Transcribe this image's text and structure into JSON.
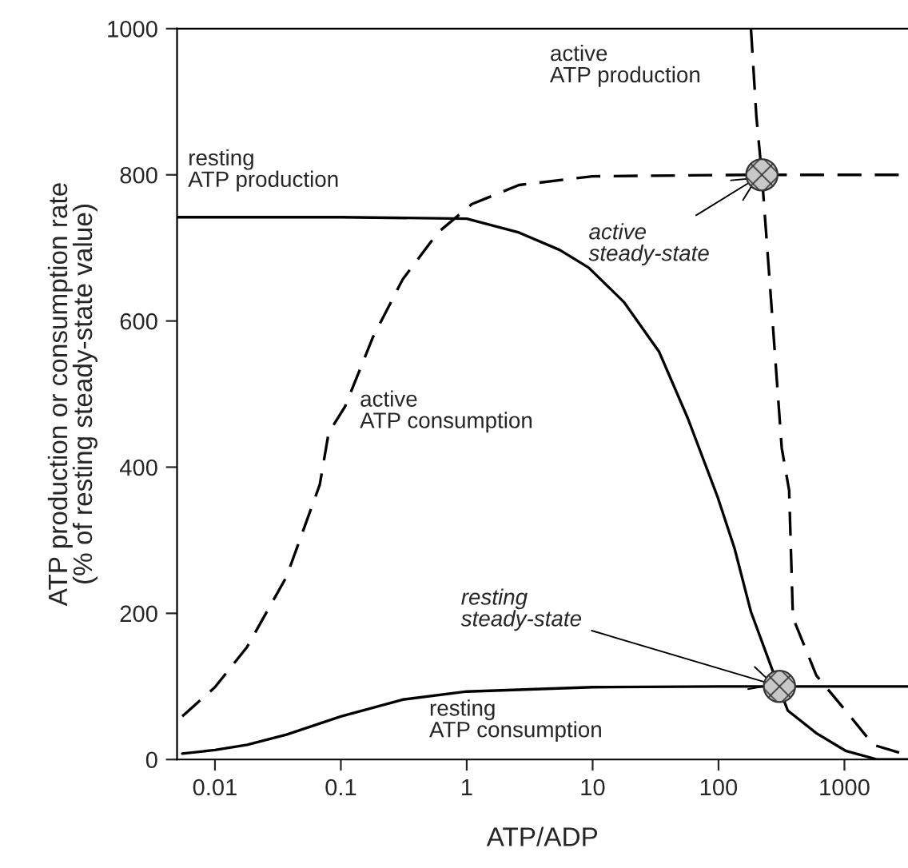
{
  "chart_data": {
    "type": "line",
    "xlabel": "ATP/ADP",
    "ylabel": "ATP production or consumption rate\n(% of resting steady-state value)",
    "log": "x",
    "xlim": [
      0.005,
      3200
    ],
    "ylim": [
      0,
      1000
    ],
    "xticks": [
      0.01,
      0.1,
      1,
      10,
      100,
      1000
    ],
    "yticks": [
      0,
      200,
      400,
      600,
      800,
      1000
    ],
    "grid": false,
    "legend": false,
    "series": [
      {
        "name": "resting\nATP production",
        "line_style": "solid",
        "color": "#000000",
        "x": [
          0.005,
          0.1,
          1,
          2.6,
          5.5,
          9.3,
          17.7,
          33.7,
          57,
          98,
          134,
          181,
          278,
          355,
          599,
          1020,
          1830,
          3200
        ],
        "values": [
          742,
          742,
          740,
          721,
          697,
          673,
          626,
          558,
          467,
          360,
          289,
          202,
          115,
          67,
          36,
          12,
          0,
          0
        ]
      },
      {
        "name": "resting\nATP consumption",
        "line_style": "solid",
        "color": "#000000",
        "x": [
          0.0055,
          0.01,
          0.018,
          0.037,
          0.1,
          0.31,
          1,
          10,
          100,
          3200
        ],
        "values": [
          8,
          13,
          20,
          34,
          59,
          82,
          93,
          99,
          100,
          100
        ]
      },
      {
        "name": "active\nATP consumption",
        "line_style": "dashed",
        "color": "#000000",
        "x": [
          0.0055,
          0.01,
          0.018,
          0.037,
          0.068,
          0.08,
          0.108,
          0.18,
          0.31,
          0.59,
          1.1,
          2.6,
          10,
          181,
          3200
        ],
        "values": [
          59,
          99,
          154,
          250,
          376,
          447,
          483,
          578,
          657,
          721,
          760,
          786,
          798,
          800,
          800
        ]
      },
      {
        "name": "active\nATP production",
        "line_style": "dashed",
        "color": "#000000",
        "x": [
          181,
          200,
          221,
          258,
          318,
          364,
          390,
          599,
          1020,
          1700,
          2900
        ],
        "values": [
          1000,
          879,
          800,
          642,
          426,
          368,
          194,
          115,
          67,
          20,
          8
        ]
      },
      {
        "type": "scatter",
        "marker": "circle",
        "color": "#333333",
        "x": [
          221,
          305
        ],
        "values": [
          800,
          100
        ]
      }
    ],
    "annotations": [
      {
        "text": "active\nsteady-state",
        "x": 221,
        "y": 800
      },
      {
        "text": "resting\nsteady-state",
        "x": 305,
        "y": 100
      }
    ]
  }
}
